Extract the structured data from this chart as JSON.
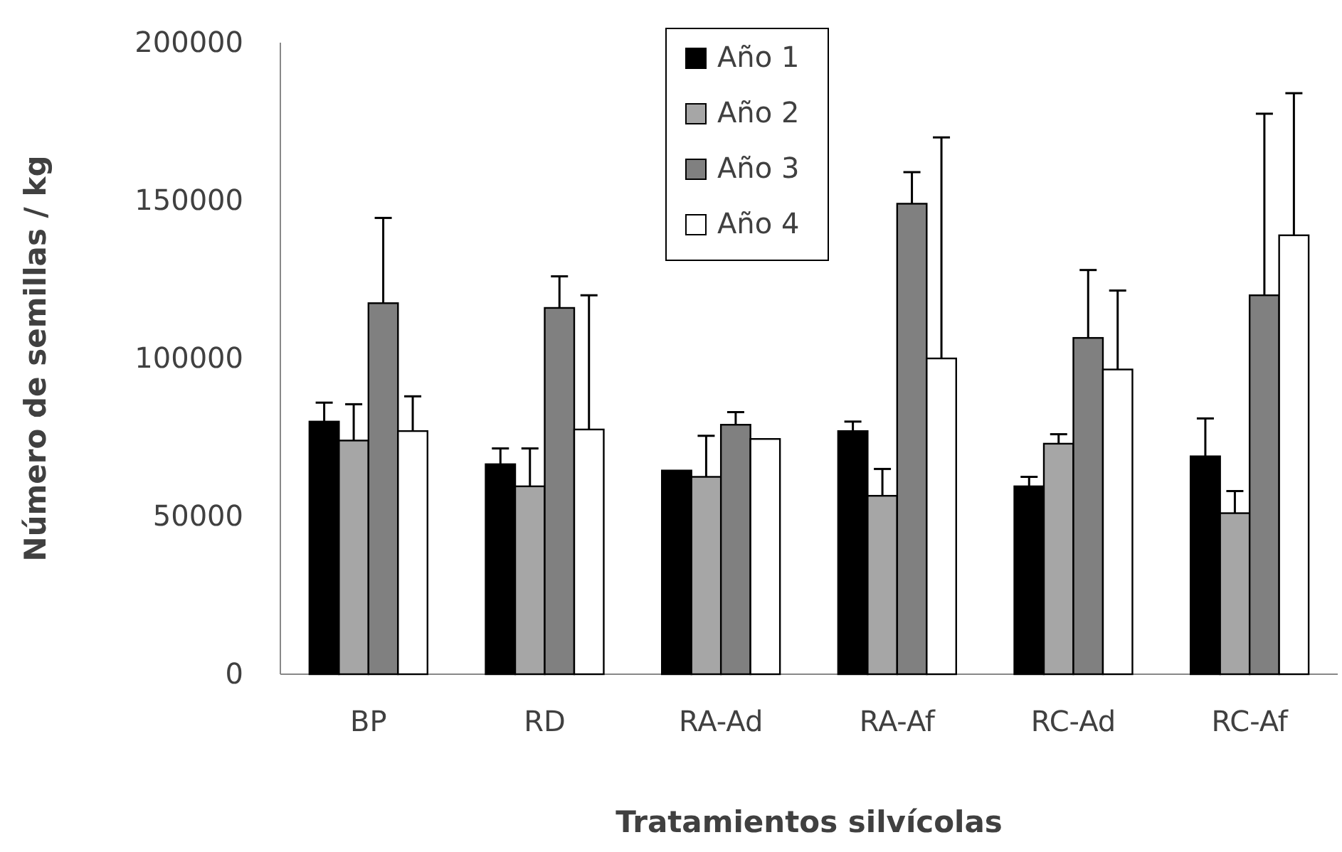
{
  "chart_data": {
    "type": "bar",
    "xlabel": "Tratamientos silvícolas",
    "ylabel": "Número de semillas / kg",
    "categories": [
      "BP",
      "RD",
      "RA-Ad",
      "RA-Af",
      "RC-Ad",
      "RC-Af"
    ],
    "series": [
      {
        "name": "Año 1",
        "color": "#000000",
        "values": [
          80000,
          66500,
          64500,
          77000,
          59500,
          69000
        ],
        "errors": [
          [
            80000,
            86000
          ],
          [
            66500,
            71500
          ],
          null,
          [
            77000,
            80000
          ],
          [
            59500,
            62500
          ],
          [
            69000,
            81000
          ]
        ]
      },
      {
        "name": "Año 2",
        "color": "#a6a6a6",
        "values": [
          74000,
          59500,
          62500,
          56500,
          73000,
          51000
        ],
        "errors": [
          [
            74000,
            85500
          ],
          [
            59500,
            71500
          ],
          [
            62500,
            75500
          ],
          [
            56500,
            65000
          ],
          [
            73000,
            76000
          ],
          [
            51000,
            58000
          ]
        ]
      },
      {
        "name": "Año 3",
        "color": "#808080",
        "values": [
          117500,
          116000,
          79000,
          149000,
          106500,
          120000
        ],
        "errors": [
          [
            117500,
            144500
          ],
          [
            116000,
            126000
          ],
          [
            79000,
            83000
          ],
          [
            149000,
            159000
          ],
          [
            106500,
            128000
          ],
          [
            120000,
            177500
          ]
        ]
      },
      {
        "name": "Año 4",
        "color": "#ffffff",
        "values": [
          77000,
          77500,
          74500,
          100000,
          96500,
          139000
        ],
        "errors": [
          [
            77000,
            88000
          ],
          [
            77500,
            120000
          ],
          null,
          [
            100000,
            170000
          ],
          [
            96500,
            121500
          ],
          [
            139000,
            184000
          ]
        ]
      }
    ],
    "ylim": [
      0,
      200000
    ],
    "yticks": [
      0,
      50000,
      100000,
      150000,
      200000
    ],
    "grid": false,
    "legend": "top"
  }
}
